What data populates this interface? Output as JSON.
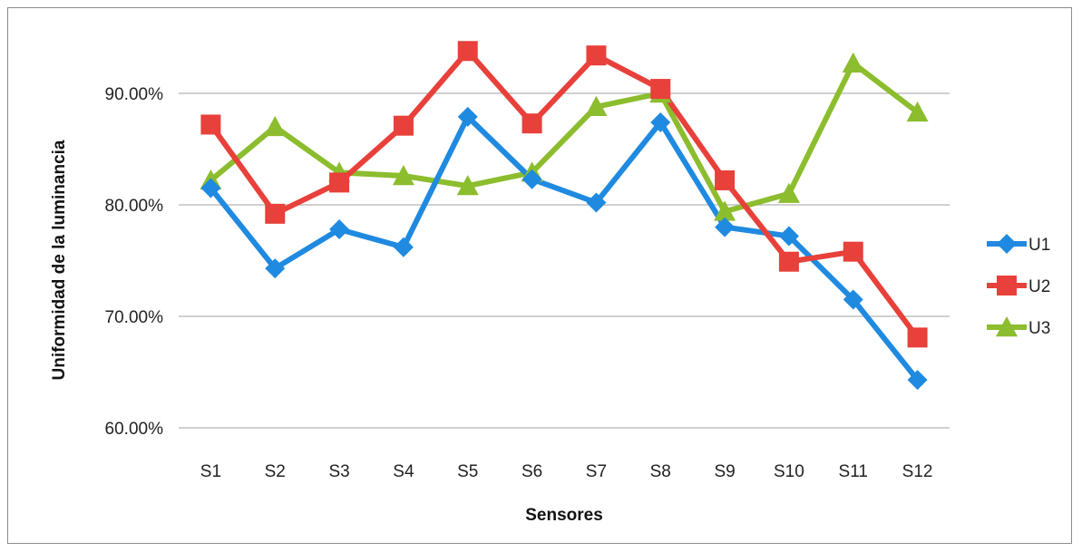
{
  "chart_data": {
    "type": "line",
    "title": "",
    "xlabel": "Sensores",
    "ylabel": "Uniformidad de la luminancia",
    "categories": [
      "S1",
      "S2",
      "S3",
      "S4",
      "S5",
      "S6",
      "S7",
      "S8",
      "S9",
      "S10",
      "S11",
      "S12"
    ],
    "ylim": [
      0.6,
      0.95
    ],
    "yticks": [
      0.6,
      0.7,
      0.8,
      0.9
    ],
    "ytick_labels": [
      "60.00%",
      "70.00%",
      "80.00%",
      "90.00%"
    ],
    "grid": true,
    "legend_position": "right",
    "series": [
      {
        "name": "U1",
        "color": "#1f8ae0",
        "marker": "diamond",
        "values": [
          0.815,
          0.743,
          0.778,
          0.762,
          0.879,
          0.823,
          0.802,
          0.874,
          0.78,
          0.772,
          0.715,
          0.643
        ]
      },
      {
        "name": "U2",
        "color": "#e8403a",
        "marker": "square",
        "values": [
          0.872,
          0.792,
          0.82,
          0.871,
          0.938,
          0.873,
          0.934,
          0.904,
          0.822,
          0.749,
          0.758,
          0.681
        ]
      },
      {
        "name": "U3",
        "color": "#8cbd2e",
        "marker": "triangle",
        "values": [
          0.822,
          0.87,
          0.829,
          0.826,
          0.817,
          0.829,
          0.888,
          0.9,
          0.794,
          0.81,
          0.927,
          0.883
        ]
      }
    ]
  }
}
